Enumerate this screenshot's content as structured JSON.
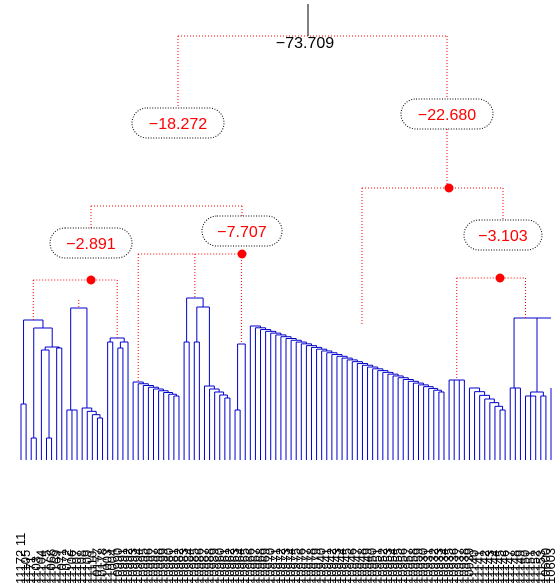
{
  "tree": {
    "root_value": "−73.709",
    "nodes": [
      {
        "id": "node-left-major",
        "value": "−18.272"
      },
      {
        "id": "node-right-major",
        "value": "−22.680"
      },
      {
        "id": "node-left-a",
        "value": "−2.891"
      },
      {
        "id": "node-left-b",
        "value": "−7.707"
      },
      {
        "id": "node-right-b",
        "value": "−3.103"
      }
    ],
    "colors": {
      "annotated_link": "#ff0000",
      "subtree_link": "#0000cc",
      "root_link": "#000000"
    },
    "leaf_count": 105,
    "leaf_labels": [
      "11172 11",
      "11105",
      "1171",
      "1103",
      "11104",
      "11175",
      "11066",
      "11169",
      "11071",
      "11072",
      "11106",
      "11107",
      "11108",
      "11109",
      "11110",
      "10177",
      "10178",
      "11003",
      "11004",
      "10990",
      "10991",
      "10992",
      "10993",
      "10994",
      "10995",
      "10996",
      "10997",
      "10998",
      "10999",
      "10980",
      "10981",
      "10982",
      "10983",
      "10984",
      "10985",
      "10986",
      "10987",
      "10988",
      "10989",
      "10960",
      "10961",
      "10962",
      "10963",
      "10964",
      "10965",
      "10966",
      "10967",
      "10968",
      "10969",
      "10970",
      "10971",
      "10972",
      "10973",
      "10974",
      "10975",
      "10976",
      "10977",
      "10978",
      "10979",
      "10940",
      "10941",
      "10942",
      "10943",
      "10944",
      "10945",
      "10946",
      "10947",
      "10948",
      "10949",
      "10950",
      "10951",
      "10952",
      "10953",
      "10954",
      "10955",
      "10956",
      "10957",
      "10958",
      "10959",
      "10930",
      "10931",
      "10932",
      "10933",
      "10934",
      "10935",
      "10936",
      "10937",
      "10938",
      "10939",
      "11140",
      "11141",
      "11142",
      "11143",
      "11144",
      "11145",
      "11146",
      "11147",
      "11148",
      "11149",
      "11150",
      "11151",
      "11152",
      "11153",
      "10600",
      "10603"
    ]
  }
}
